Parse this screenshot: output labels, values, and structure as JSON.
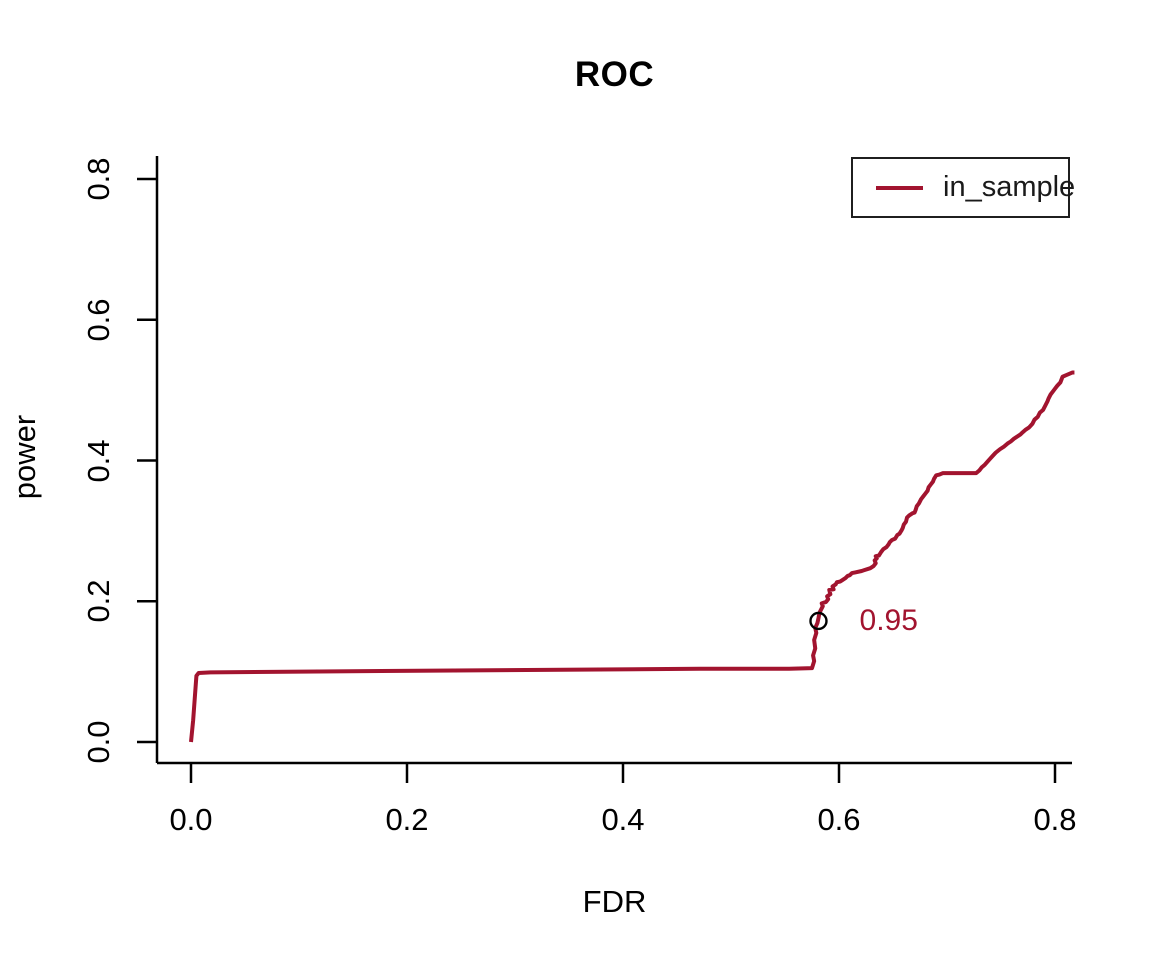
{
  "figure": {
    "title": "ROC",
    "xlabel": "FDR",
    "ylabel": "power"
  },
  "legend": {
    "entries": [
      {
        "label": "in_sample",
        "color": "#a2142f"
      }
    ]
  },
  "annotations": {
    "threshold_label": "0.95"
  },
  "colors": {
    "curve": "#a2142f",
    "axis": "#000000",
    "marker_stroke": "#000000",
    "annotation_text": "#a2142f",
    "background": "#ffffff"
  },
  "chart_data": {
    "type": "line",
    "title": "ROC",
    "xlabel": "FDR",
    "ylabel": "power",
    "xlim": [
      0,
      0.83
    ],
    "ylim": [
      0,
      0.8
    ],
    "x_ticks": [
      0.0,
      0.2,
      0.4,
      0.6,
      0.8
    ],
    "y_ticks": [
      0.0,
      0.2,
      0.4,
      0.6,
      0.8
    ],
    "grid": false,
    "legend_position": "top-right",
    "series": [
      {
        "name": "in_sample",
        "color": "#a2142f",
        "points": [
          [
            0.0,
            0.0
          ],
          [
            0.002,
            0.031
          ],
          [
            0.005,
            0.094
          ],
          [
            0.007,
            0.098
          ],
          [
            0.018,
            0.099
          ],
          [
            0.193,
            0.101
          ],
          [
            0.378,
            0.103
          ],
          [
            0.471,
            0.104
          ],
          [
            0.554,
            0.104
          ],
          [
            0.575,
            0.105
          ],
          [
            0.577,
            0.115
          ],
          [
            0.576,
            0.123
          ],
          [
            0.578,
            0.133
          ],
          [
            0.577,
            0.145
          ],
          [
            0.579,
            0.155
          ],
          [
            0.578,
            0.162
          ],
          [
            0.58,
            0.169
          ],
          [
            0.581,
            0.176
          ],
          [
            0.582,
            0.184
          ],
          [
            0.584,
            0.19
          ],
          [
            0.585,
            0.193
          ],
          [
            0.584,
            0.197
          ],
          [
            0.588,
            0.199
          ],
          [
            0.59,
            0.203
          ],
          [
            0.589,
            0.207
          ],
          [
            0.592,
            0.21
          ],
          [
            0.591,
            0.216
          ],
          [
            0.595,
            0.217
          ],
          [
            0.594,
            0.221
          ],
          [
            0.597,
            0.224
          ],
          [
            0.598,
            0.227
          ],
          [
            0.601,
            0.228
          ],
          [
            0.603,
            0.23
          ],
          [
            0.606,
            0.233
          ],
          [
            0.608,
            0.236
          ],
          [
            0.61,
            0.237
          ],
          [
            0.612,
            0.24
          ],
          [
            0.615,
            0.241
          ],
          [
            0.621,
            0.243
          ],
          [
            0.623,
            0.244
          ],
          [
            0.629,
            0.247
          ],
          [
            0.632,
            0.25
          ],
          [
            0.634,
            0.254
          ],
          [
            0.633,
            0.258
          ],
          [
            0.635,
            0.261
          ],
          [
            0.634,
            0.264
          ],
          [
            0.637,
            0.265
          ],
          [
            0.639,
            0.27
          ],
          [
            0.641,
            0.274
          ],
          [
            0.644,
            0.277
          ],
          [
            0.646,
            0.281
          ],
          [
            0.647,
            0.284
          ],
          [
            0.649,
            0.287
          ],
          [
            0.652,
            0.289
          ],
          [
            0.654,
            0.294
          ],
          [
            0.656,
            0.296
          ],
          [
            0.658,
            0.301
          ],
          [
            0.659,
            0.304
          ],
          [
            0.66,
            0.309
          ],
          [
            0.662,
            0.313
          ],
          [
            0.663,
            0.319
          ],
          [
            0.665,
            0.322
          ],
          [
            0.668,
            0.325
          ],
          [
            0.67,
            0.326
          ],
          [
            0.671,
            0.33
          ],
          [
            0.672,
            0.335
          ],
          [
            0.674,
            0.339
          ],
          [
            0.676,
            0.345
          ],
          [
            0.678,
            0.349
          ],
          [
            0.68,
            0.353
          ],
          [
            0.682,
            0.357
          ],
          [
            0.683,
            0.362
          ],
          [
            0.685,
            0.366
          ],
          [
            0.687,
            0.37
          ],
          [
            0.688,
            0.374
          ],
          [
            0.69,
            0.379
          ],
          [
            0.693,
            0.38
          ],
          [
            0.696,
            0.382
          ],
          [
            0.727,
            0.382
          ],
          [
            0.73,
            0.386
          ],
          [
            0.732,
            0.39
          ],
          [
            0.735,
            0.394
          ],
          [
            0.739,
            0.401
          ],
          [
            0.742,
            0.406
          ],
          [
            0.745,
            0.411
          ],
          [
            0.749,
            0.416
          ],
          [
            0.753,
            0.42
          ],
          [
            0.756,
            0.424
          ],
          [
            0.759,
            0.427
          ],
          [
            0.762,
            0.431
          ],
          [
            0.765,
            0.434
          ],
          [
            0.768,
            0.437
          ],
          [
            0.77,
            0.44
          ],
          [
            0.773,
            0.444
          ],
          [
            0.776,
            0.447
          ],
          [
            0.779,
            0.452
          ],
          [
            0.781,
            0.458
          ],
          [
            0.784,
            0.462
          ],
          [
            0.786,
            0.468
          ],
          [
            0.789,
            0.472
          ],
          [
            0.791,
            0.478
          ],
          [
            0.793,
            0.484
          ],
          [
            0.794,
            0.488
          ],
          [
            0.796,
            0.494
          ],
          [
            0.798,
            0.498
          ],
          [
            0.8,
            0.502
          ],
          [
            0.802,
            0.506
          ],
          [
            0.805,
            0.511
          ],
          [
            0.807,
            0.519
          ],
          [
            0.81,
            0.521
          ],
          [
            0.813,
            0.523
          ],
          [
            0.816,
            0.525
          ],
          [
            0.818,
            0.525
          ]
        ]
      }
    ],
    "marker": {
      "x": 0.581,
      "y": 0.172,
      "shape": "open-circle",
      "label": "0.95"
    },
    "annotation": {
      "text": "0.95",
      "x": 0.619,
      "y": 0.172
    }
  }
}
